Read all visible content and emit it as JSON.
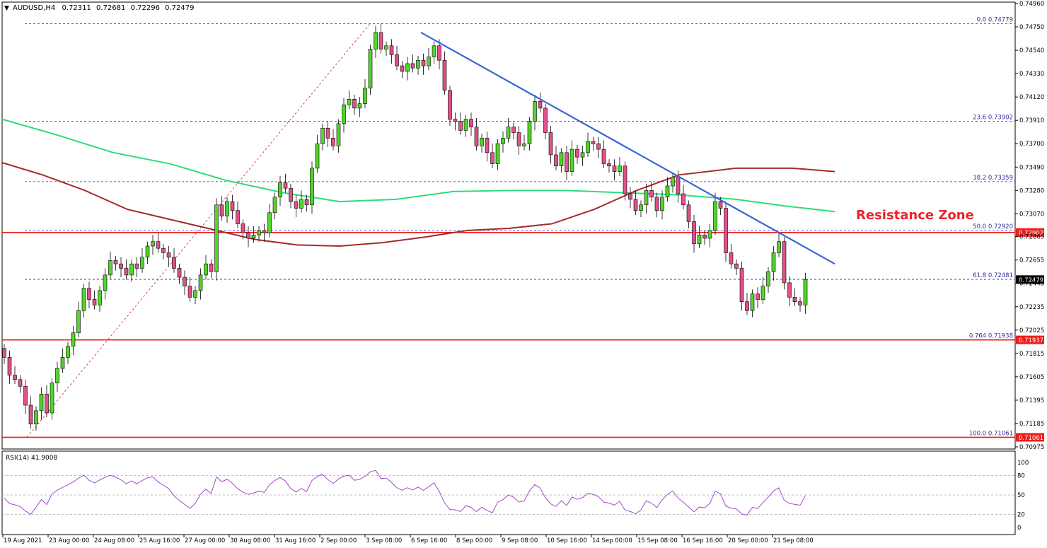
{
  "header": {
    "symbol": "AUDUSD,H4",
    "open": "0.72311",
    "high": "0.72681",
    "low": "0.72296",
    "close": "0.72479"
  },
  "annotation": {
    "label": "Resistance Zone",
    "color": "#e8262b"
  },
  "colors": {
    "bull": "#53d42b",
    "bear": "#e0508a",
    "ma_fast": "#a52a2a",
    "ma_slow": "#2ddc7c",
    "trendline": "#3a66d6",
    "hline": "#ee1c1c",
    "fib": "#3030a0",
    "rsi": "#9b36c8"
  },
  "price_axis": {
    "ticks": [
      "0.74960",
      "0.74750",
      "0.74540",
      "0.74330",
      "0.74120",
      "0.73910",
      "0.73700",
      "0.73490",
      "0.73280",
      "0.73070",
      "0.72865",
      "0.72655",
      "0.72445",
      "0.72235",
      "0.72025",
      "0.71815",
      "0.71605",
      "0.71395",
      "0.71185",
      "0.70975"
    ],
    "current_price": "0.72479"
  },
  "fib_levels": [
    {
      "label": "0.0 0.74779",
      "value": 0.74779
    },
    {
      "label": "23.6 0.73902",
      "value": 0.73902
    },
    {
      "label": "38.2 0.73359",
      "value": 0.73359
    },
    {
      "label": "50.0 0.72920",
      "value": 0.7292
    },
    {
      "label": "61.8 0.72481",
      "value": 0.72481
    },
    {
      "label": "0.764 0.71938",
      "value": 0.71938
    },
    {
      "label": "100.0 0.71061",
      "value": 0.71061
    }
  ],
  "horizontal_lines": [
    {
      "tag": "0.72902",
      "value": 0.72902
    },
    {
      "tag": "0.71937",
      "value": 0.71937
    },
    {
      "tag": "0.71061",
      "value": 0.71061
    }
  ],
  "time_axis": [
    "19 Aug 2021",
    "23 Aug 00:00",
    "24 Aug 08:00",
    "25 Aug 16:00",
    "27 Aug 00:00",
    "30 Aug 08:00",
    "31 Aug 16:00",
    "2 Sep 00:00",
    "3 Sep 08:00",
    "6 Sep 16:00",
    "8 Sep 00:00",
    "9 Sep 08:00",
    "10 Sep 16:00",
    "14 Sep 00:00",
    "15 Sep 08:00",
    "16 Sep 16:00",
    "20 Sep 00:00",
    "21 Sep 08:00"
  ],
  "rsi": {
    "label": "RSI(14) 41.9008",
    "ticks": [
      "100",
      "80",
      "50",
      "20",
      "0"
    ]
  },
  "chart_data": [
    {
      "type": "candlestick",
      "symbol": "AUDUSD",
      "timeframe": "H4",
      "closes": [
        0.7178,
        0.7162,
        0.7158,
        0.7152,
        0.7135,
        0.7118,
        0.713,
        0.7145,
        0.7128,
        0.7155,
        0.7168,
        0.7178,
        0.7188,
        0.72,
        0.722,
        0.724,
        0.723,
        0.7225,
        0.7238,
        0.7252,
        0.7265,
        0.7262,
        0.7258,
        0.7252,
        0.7262,
        0.7258,
        0.7268,
        0.7278,
        0.7282,
        0.7276,
        0.7272,
        0.7268,
        0.7258,
        0.725,
        0.7242,
        0.7232,
        0.7238,
        0.7252,
        0.7262,
        0.7255,
        0.7315,
        0.7305,
        0.7318,
        0.731,
        0.7298,
        0.729,
        0.7285,
        0.7288,
        0.7292,
        0.729,
        0.7308,
        0.7322,
        0.7335,
        0.733,
        0.7318,
        0.7312,
        0.732,
        0.7315,
        0.7348,
        0.737,
        0.7384,
        0.7375,
        0.7368,
        0.7388,
        0.7405,
        0.741,
        0.7402,
        0.7406,
        0.742,
        0.7455,
        0.747,
        0.7455,
        0.7458,
        0.745,
        0.744,
        0.7435,
        0.7442,
        0.7438,
        0.7445,
        0.744,
        0.7448,
        0.7458,
        0.7445,
        0.7418,
        0.7392,
        0.739,
        0.7382,
        0.7392,
        0.7385,
        0.7368,
        0.7375,
        0.7362,
        0.7352,
        0.737,
        0.7375,
        0.7385,
        0.738,
        0.7368,
        0.737,
        0.739,
        0.7408,
        0.7402,
        0.738,
        0.736,
        0.735,
        0.7362,
        0.7345,
        0.7365,
        0.7358,
        0.7362,
        0.7372,
        0.737,
        0.7365,
        0.7352,
        0.735,
        0.7345,
        0.735,
        0.7325,
        0.732,
        0.731,
        0.7315,
        0.7328,
        0.7322,
        0.731,
        0.7322,
        0.7332,
        0.734,
        0.7325,
        0.7315,
        0.73,
        0.728,
        0.7288,
        0.7285,
        0.7292,
        0.7318,
        0.7312,
        0.7272,
        0.7262,
        0.7258,
        0.7228,
        0.722,
        0.7235,
        0.723,
        0.7242,
        0.7255,
        0.7272,
        0.7282,
        0.7245,
        0.7232,
        0.7228,
        0.7225,
        0.7248
      ]
    },
    {
      "type": "line",
      "series": [
        {
          "name": "0.72479 trend",
          "values": []
        }
      ]
    }
  ]
}
